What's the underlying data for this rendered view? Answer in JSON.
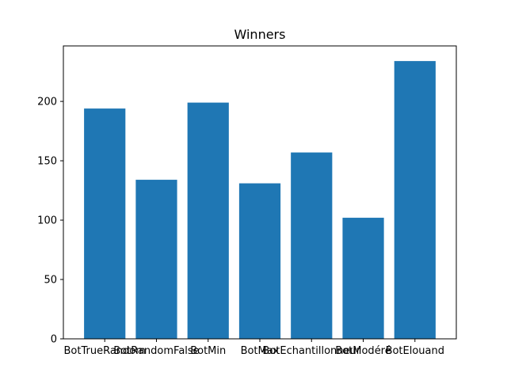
{
  "chart_data": {
    "type": "bar",
    "title": "Winners",
    "xlabel": "",
    "ylabel": "",
    "categories": [
      "BotTrueRandom",
      "BotRandomFalse",
      "BotMin",
      "BotMax",
      "BotEchantillonneur",
      "BotModéré",
      "BotElouand"
    ],
    "values": [
      194,
      134,
      199,
      131,
      157,
      102,
      234
    ],
    "ylim": [
      0,
      246.75
    ],
    "yticks": [
      0,
      50,
      100,
      150,
      200
    ],
    "bar_color": "#1f77b4",
    "grid": false,
    "legend": "none"
  }
}
